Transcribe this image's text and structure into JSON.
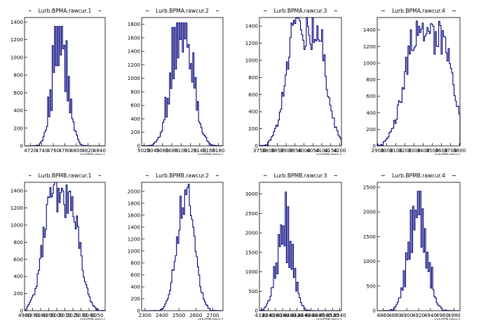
{
  "colors": {
    "hist": "#00007a",
    "frame": "#000000",
    "background": "#ffffff"
  },
  "chart_data": [
    {
      "type": "histogram",
      "title": "Lurb.BPMA.rawcur.1",
      "xlabel": "Lurb.BPMA.rawcur.1",
      "xlim": [
        4710,
        4850
      ],
      "ylim": [
        0,
        1450
      ],
      "xticks": [
        "4720",
        "4740",
        "4760",
        "4780",
        "4800",
        "4820",
        "4840"
      ],
      "xtick_values": [
        4720,
        4740,
        4760,
        4780,
        4800,
        4820,
        4840
      ],
      "yticks": [
        "0",
        "200",
        "400",
        "600",
        "800",
        "1000",
        "1200",
        "1400"
      ],
      "ytick_values": [
        0,
        200,
        400,
        600,
        800,
        1000,
        1200,
        1400
      ],
      "center": 4772,
      "sigma": 13,
      "peak": 1220,
      "pattern": "spiky",
      "spikes": 1350
    },
    {
      "type": "histogram",
      "title": "Lurb.BPMA.rawcur.2",
      "xlabel": "Lurb.BPMA.rawcur.2",
      "xlim": [
        5015,
        5190
      ],
      "ylim": [
        0,
        1900
      ],
      "xticks": [
        "5020",
        "5040",
        "5060",
        "5080",
        "5100",
        "5120",
        "5140",
        "5160",
        "5180"
      ],
      "xtick_values": [
        5020,
        5040,
        5060,
        5080,
        5100,
        5120,
        5140,
        5160,
        5180
      ],
      "yticks": [
        "0",
        "200",
        "400",
        "600",
        "800",
        "1000",
        "1200",
        "1400",
        "1600",
        "1800"
      ],
      "ytick_values": [
        0,
        200,
        400,
        600,
        800,
        1000,
        1200,
        1400,
        1600,
        1800
      ],
      "center": 5102,
      "sigma": 22,
      "peak": 1750,
      "pattern": "spiky",
      "spikes": 1820
    },
    {
      "type": "histogram",
      "title": "Lurb.BPMA.rawcur.3",
      "xlabel": "Lurb.BPMA.rawcur.3",
      "xlim": [
        3750,
        4210
      ],
      "ylim": [
        0,
        1500
      ],
      "xticks": [
        "3750",
        "3800",
        "3850",
        "3900",
        "3950",
        "4000",
        "4050",
        "4100",
        "4150",
        "4200"
      ],
      "xtick_values": [
        3750,
        3800,
        3850,
        3900,
        3950,
        4000,
        4050,
        4100,
        4150,
        4200
      ],
      "yticks": [
        "0",
        "200",
        "400",
        "600",
        "800",
        "1000",
        "1200",
        "1400"
      ],
      "ytick_values": [
        0,
        200,
        400,
        600,
        800,
        1000,
        1200,
        1400
      ],
      "center": 4010,
      "sigma": 60,
      "peak": 1330,
      "pattern": "bimodal",
      "spikes": 1430
    },
    {
      "type": "histogram",
      "title": "Lurb.BPMA.rawcur.4",
      "xlabel": "Lurb.BPMA.rawcur.4",
      "xlim": [
        2895,
        3805
      ],
      "ylim": [
        0,
        1550
      ],
      "xticks": [
        "2900",
        "3000",
        "3100",
        "3200",
        "3300",
        "3400",
        "3500",
        "3600",
        "3700",
        "3800"
      ],
      "xtick_values": [
        2900,
        3000,
        3100,
        3200,
        3300,
        3400,
        3500,
        3600,
        3700,
        3800
      ],
      "yticks": [
        "0",
        "200",
        "400",
        "600",
        "800",
        "1000",
        "1200",
        "1400"
      ],
      "ytick_values": [
        0,
        200,
        400,
        600,
        800,
        1000,
        1200,
        1400
      ],
      "center": 3450,
      "sigma": 140,
      "peak": 1300,
      "pattern": "bimodal",
      "spikes": 1470
    },
    {
      "type": "histogram",
      "title": "Lurb.BPMB.rawcur.1",
      "xlabel": "Lurb.BPMB.rawcur.1",
      "xlim": [
        4960,
        5060
      ],
      "ylim": [
        0,
        1500
      ],
      "xticks": [
        "4960",
        "4970",
        "4980",
        "4990",
        "5000",
        "5010",
        "5020",
        "5030",
        "5040",
        "5050"
      ],
      "xtick_values": [
        4960,
        4970,
        4980,
        4990,
        5000,
        5010,
        5020,
        5030,
        5040,
        5050
      ],
      "yticks": [
        "0",
        "200",
        "400",
        "600",
        "800",
        "1000",
        "1200",
        "1400"
      ],
      "ytick_values": [
        0,
        200,
        400,
        600,
        800,
        1000,
        1200,
        1400
      ],
      "center": 5005,
      "sigma": 12,
      "peak": 1300,
      "pattern": "bimodal",
      "spikes": 1400
    },
    {
      "type": "histogram",
      "title": "Lurb.BPMB.rawcur.2",
      "xlabel": "Lurb.BPMB.rawcur.2",
      "xlim": [
        2280,
        2760
      ],
      "ylim": [
        0,
        2150
      ],
      "xticks": [
        "2300",
        "2400",
        "2500",
        "2600",
        "2700"
      ],
      "xtick_values": [
        2300,
        2400,
        2500,
        2600,
        2700
      ],
      "yticks": [
        "0",
        "200",
        "400",
        "600",
        "800",
        "1000",
        "1200",
        "1400",
        "1600",
        "1800",
        "2000"
      ],
      "ytick_values": [
        0,
        200,
        400,
        600,
        800,
        1000,
        1200,
        1400,
        1600,
        1800,
        2000
      ],
      "center": 2540,
      "sigma": 50,
      "peak": 2000,
      "pattern": "smooth",
      "spikes": 2060
    },
    {
      "type": "histogram",
      "title": "Lurb.BPMB.rawcur.3",
      "xlabel": "Lurb.BPMB.rawcur.3",
      "xlim": [
        4315,
        4545
      ],
      "ylim": [
        0,
        3300
      ],
      "xticks": [
        "4320",
        "4340",
        "4360",
        "4380",
        "4400",
        "4420",
        "4440",
        "4460",
        "4480",
        "4500",
        "4520",
        "4540"
      ],
      "xtick_values": [
        4320,
        4340,
        4360,
        4380,
        4400,
        4420,
        4440,
        4460,
        4480,
        4500,
        4520,
        4540
      ],
      "yticks": [
        "0",
        "500",
        "1000",
        "1500",
        "2000",
        "2500",
        "3000"
      ],
      "ytick_values": [
        0,
        500,
        1000,
        1500,
        2000,
        2500,
        3000
      ],
      "center": 4385,
      "sigma": 22,
      "peak": 2000,
      "pattern": "spiky",
      "spikes": 3050
    },
    {
      "type": "histogram",
      "title": "Lurb.BPMB.rawcur.4",
      "xlabel": "Lurb.BPMB.rawcur.4",
      "xlim": [
        4850,
        4990
      ],
      "ylim": [
        0,
        2600
      ],
      "xticks": [
        "4860",
        "4880",
        "4900",
        "4920",
        "4940",
        "4960",
        "4980"
      ],
      "xtick_values": [
        4860,
        4880,
        4900,
        4920,
        4940,
        4960,
        4980
      ],
      "yticks": [
        "0",
        "500",
        "1000",
        "1500",
        "2000",
        "2500"
      ],
      "ytick_values": [
        0,
        500,
        1000,
        1500,
        2000,
        2500
      ],
      "center": 4918,
      "sigma": 15,
      "peak": 2050,
      "pattern": "spiky",
      "spikes": 2420
    }
  ]
}
